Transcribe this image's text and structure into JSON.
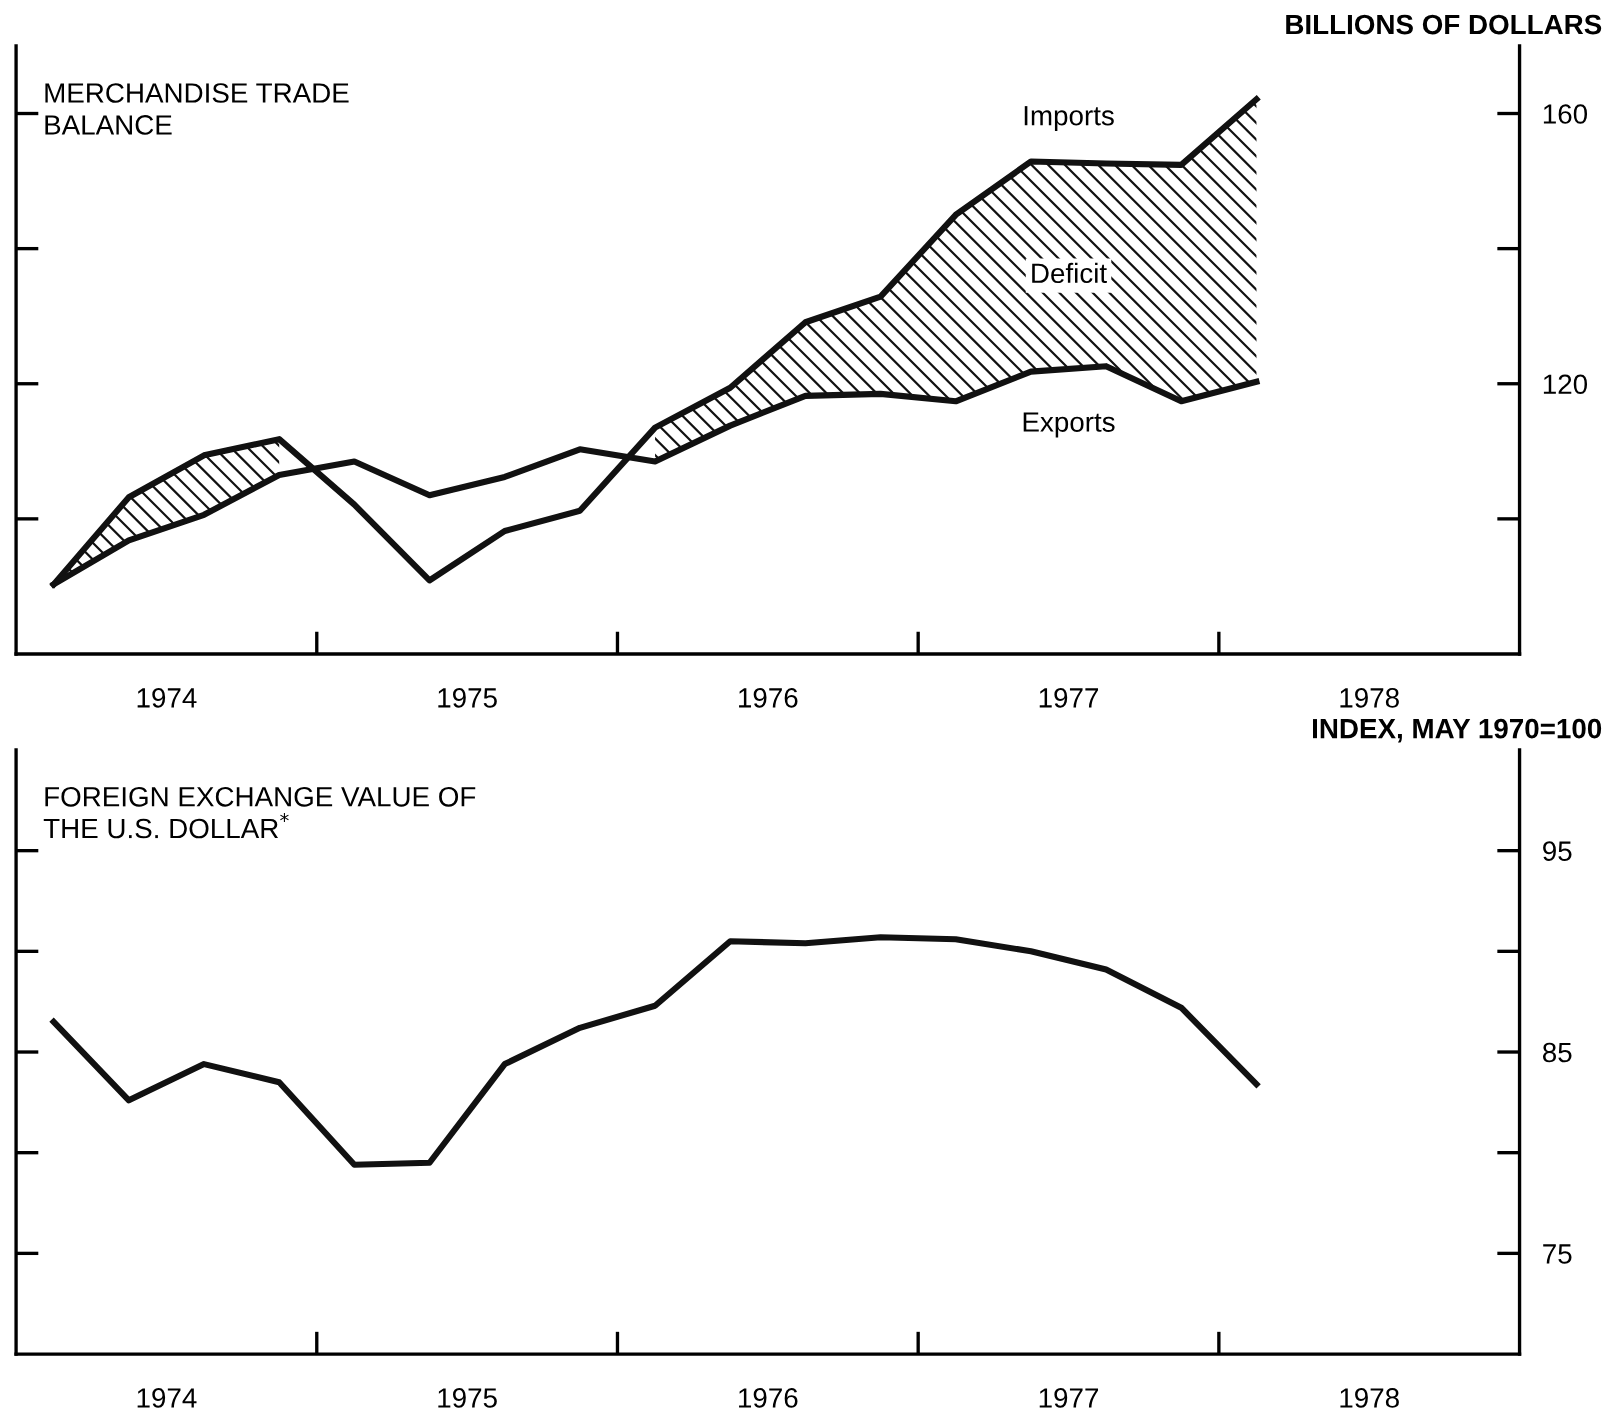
{
  "chart_data": [
    {
      "type": "line",
      "title": "MERCHANDISE TRADE\nBALANCE",
      "ylabel": "BILLIONS OF DOLLARS",
      "x": [
        1974.125,
        1974.375,
        1974.625,
        1974.875,
        1975.125,
        1975.375,
        1975.625,
        1975.875,
        1976.125,
        1976.375,
        1976.625,
        1976.875,
        1977.125,
        1977.375,
        1977.625,
        1977.875,
        1978.125
      ],
      "series": [
        {
          "name": "Imports",
          "color": "#111111",
          "values": [
            90.3,
            103.2,
            109.4,
            111.8,
            102.1,
            90.9,
            98.2,
            101.2,
            113.5,
            119.4,
            129.1,
            132.9,
            145.0,
            152.9,
            152.6,
            152.4,
            162.1
          ],
          "lower": [
            90.3,
            96.8,
            100.6,
            106.5,
            null,
            null,
            null,
            null,
            108.5,
            113.8,
            118.2,
            118.5,
            117.4,
            121.8,
            122.6,
            117.4,
            120.3
          ],
          "upper": [
            90.3,
            103.2,
            109.4,
            111.8,
            null,
            null,
            null,
            null,
            113.5,
            119.4,
            129.1,
            132.9,
            145.0,
            152.9,
            152.6,
            152.4,
            162.1
          ]
        },
        {
          "name": "Exports",
          "color": "#111111",
          "values": [
            90.3,
            96.8,
            100.6,
            106.5,
            108.5,
            103.5,
            106.2,
            110.3,
            108.5,
            113.8,
            118.2,
            118.5,
            117.4,
            121.8,
            122.6,
            117.4,
            120.3
          ]
        }
      ],
      "annotations": [
        {
          "text": "Deficit",
          "x": 1977.5,
          "y": 136
        }
      ],
      "xlim": [
        1974,
        1979
      ],
      "xticks": [
        {
          "value": 1974.5,
          "label": "1974"
        },
        {
          "value": 1975,
          "label": null
        },
        {
          "value": 1975.5,
          "label": "1975"
        },
        {
          "value": 1976,
          "label": null
        },
        {
          "value": 1976.5,
          "label": "1976"
        },
        {
          "value": 1977,
          "label": null
        },
        {
          "value": 1977.5,
          "label": "1977"
        },
        {
          "value": 1978,
          "label": null
        },
        {
          "value": 1978.5,
          "label": "1978"
        }
      ],
      "ylim": [
        80,
        170
      ],
      "yticks": [
        {
          "value": 100,
          "label": null
        },
        120,
        {
          "value": 140,
          "label": null
        },
        160
      ],
      "grid": false,
      "legend": false
    },
    {
      "type": "line",
      "title": "FOREIGN EXCHANGE VALUE OF\nTHE U.S. DOLLAR$^{*}$",
      "ylabel": "INDEX, MAY 1970=100",
      "x": [
        1974.125,
        1974.375,
        1974.625,
        1974.875,
        1975.125,
        1975.375,
        1975.625,
        1975.875,
        1976.125,
        1976.375,
        1976.625,
        1976.875,
        1977.125,
        1977.375,
        1977.625,
        1977.875,
        1978.125
      ],
      "series": [
        {
          "color": "#111111",
          "values": [
            86.5,
            82.6,
            84.4,
            83.5,
            79.4,
            79.5,
            84.4,
            86.2,
            87.3,
            90.5,
            90.4,
            90.7,
            90.6,
            90.0,
            89.1,
            87.2,
            83.4
          ]
        }
      ],
      "xlim": [
        1974,
        1979
      ],
      "xticks": [
        {
          "value": 1974.5,
          "label": "1974"
        },
        {
          "value": 1975,
          "label": null
        },
        {
          "value": 1975.5,
          "label": "1975"
        },
        {
          "value": 1976,
          "label": null
        },
        {
          "value": 1976.5,
          "label": "1976"
        },
        {
          "value": 1977,
          "label": null
        },
        {
          "value": 1977.5,
          "label": "1977"
        },
        {
          "value": 1978,
          "label": null
        },
        {
          "value": 1978.5,
          "label": "1978"
        }
      ],
      "ylim": [
        70,
        100
      ],
      "yticks": [
        75,
        {
          "value": 80,
          "label": null
        },
        85,
        {
          "value": 90,
          "label": null
        },
        95
      ],
      "grid": false,
      "legend": false
    }
  ]
}
